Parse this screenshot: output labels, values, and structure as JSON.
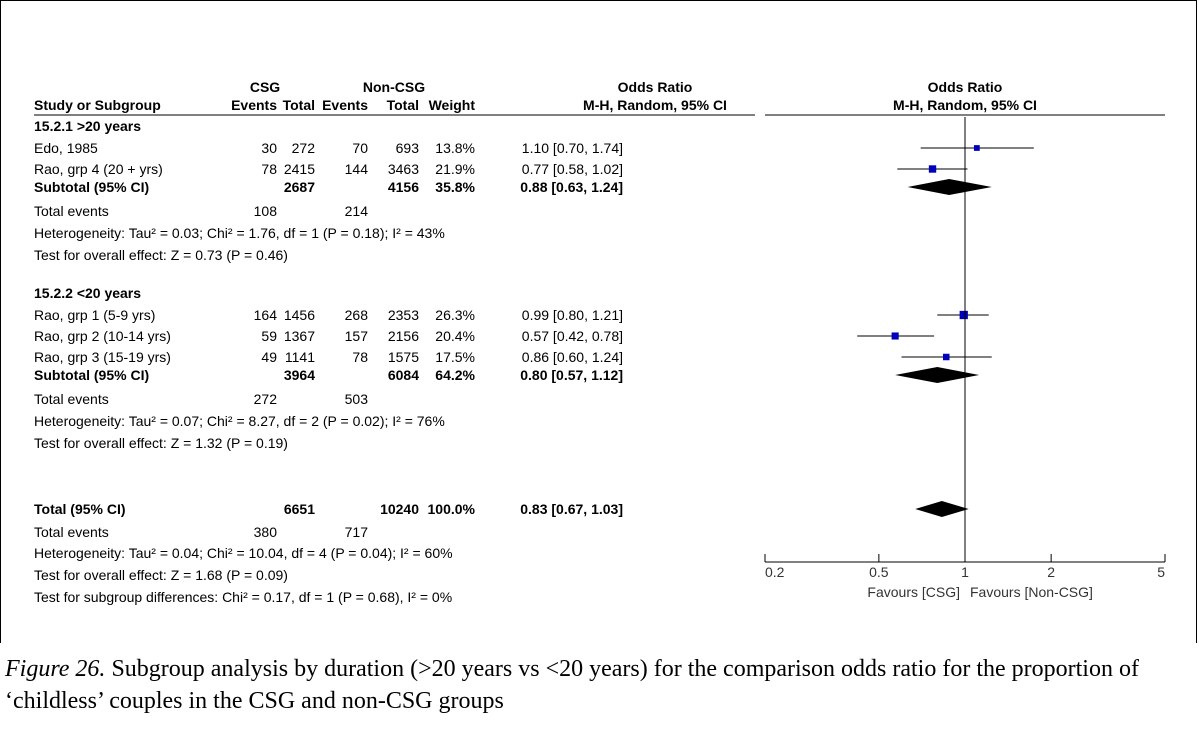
{
  "chart_data": {
    "type": "forest",
    "header": {
      "group1": "CSG",
      "group2": "Non-CSG",
      "or_col": "Odds Ratio",
      "method_col": "M-H, Random, 95% CI",
      "study_col": "Study or Subgroup",
      "events": "Events",
      "total": "Total",
      "weight": "Weight",
      "plot_title": "Odds Ratio",
      "plot_method": "M-H, Random, 95% CI"
    },
    "subgroups": [
      {
        "label": "15.2.1 >20 years",
        "studies": [
          {
            "name": "Edo, 1985",
            "e1": "30",
            "t1": "272",
            "e2": "70",
            "t2": "693",
            "weight": "13.8%",
            "ci_text": "1.10 [0.70, 1.74]",
            "or": 1.1,
            "lo": 0.7,
            "hi": 1.74
          },
          {
            "name": "Rao, grp 4 (20 + yrs)",
            "e1": "78",
            "t1": "2415",
            "e2": "144",
            "t2": "3463",
            "weight": "21.9%",
            "ci_text": "0.77 [0.58, 1.02]",
            "or": 0.77,
            "lo": 0.58,
            "hi": 1.02
          }
        ],
        "subtotal": {
          "label": "Subtotal (95% CI)",
          "t1": "2687",
          "t2": "4156",
          "weight": "35.8%",
          "ci_text": "0.88 [0.63, 1.24]",
          "or": 0.88,
          "lo": 0.63,
          "hi": 1.24
        },
        "events": {
          "label": "Total events",
          "e1": "108",
          "e2": "214"
        },
        "heterogeneity": "Heterogeneity: Tau² = 0.03; Chi² = 1.76, df = 1 (P = 0.18); I² = 43%",
        "overall": "Test for overall effect: Z = 0.73 (P = 0.46)"
      },
      {
        "label": "15.2.2 <20 years",
        "studies": [
          {
            "name": "Rao, grp 1 (5-9 yrs)",
            "e1": "164",
            "t1": "1456",
            "e2": "268",
            "t2": "2353",
            "weight": "26.3%",
            "ci_text": "0.99 [0.80, 1.21]",
            "or": 0.99,
            "lo": 0.8,
            "hi": 1.21
          },
          {
            "name": "Rao, grp 2 (10-14 yrs)",
            "e1": "59",
            "t1": "1367",
            "e2": "157",
            "t2": "2156",
            "weight": "20.4%",
            "ci_text": "0.57 [0.42, 0.78]",
            "or": 0.57,
            "lo": 0.42,
            "hi": 0.78
          },
          {
            "name": "Rao, grp 3 (15-19 yrs)",
            "e1": "49",
            "t1": "1141",
            "e2": "78",
            "t2": "1575",
            "weight": "17.5%",
            "ci_text": "0.86 [0.60, 1.24]",
            "or": 0.86,
            "lo": 0.6,
            "hi": 1.24
          }
        ],
        "subtotal": {
          "label": "Subtotal (95% CI)",
          "t1": "3964",
          "t2": "6084",
          "weight": "64.2%",
          "ci_text": "0.80 [0.57, 1.12]",
          "or": 0.8,
          "lo": 0.57,
          "hi": 1.12
        },
        "events": {
          "label": "Total events",
          "e1": "272",
          "e2": "503"
        },
        "heterogeneity": "Heterogeneity: Tau² = 0.07; Chi² = 8.27, df = 2 (P = 0.02); I² = 76%",
        "overall": "Test for overall effect: Z = 1.32 (P = 0.19)"
      }
    ],
    "total": {
      "label": "Total (95% CI)",
      "t1": "6651",
      "t2": "10240",
      "weight": "100.0%",
      "ci_text": "0.83 [0.67, 1.03]",
      "or": 0.83,
      "lo": 0.67,
      "hi": 1.03,
      "events": {
        "label": "Total events",
        "e1": "380",
        "e2": "717"
      },
      "heterogeneity": "Heterogeneity: Tau² = 0.04; Chi² = 10.04, df = 4 (P = 0.04); I² = 60%",
      "overall": "Test for overall effect: Z = 1.68 (P = 0.09)",
      "subgroup_diff": "Test for subgroup differences: Chi² = 0.17, df = 1 (P = 0.68), I² = 0%"
    },
    "x_axis": {
      "scale": "log",
      "range": [
        0.2,
        5
      ],
      "ticks": [
        0.2,
        0.5,
        1,
        2,
        5
      ],
      "tick_labels": [
        "0.2",
        "0.5",
        "1",
        "2",
        "5"
      ],
      "left_label": "Favours [CSG]",
      "right_label": "Favours [Non-CSG]"
    },
    "colors": {
      "study_marker": "#0000bb",
      "diamond": "#000000",
      "line": "#000000"
    }
  },
  "caption": {
    "figure_label": "Figure 26.",
    "text": " Subgroup analysis by duration (>20 years vs <20 years) for the comparison odds ratio for the proportion of ‘childless’ couples in the CSG and non-CSG groups"
  }
}
